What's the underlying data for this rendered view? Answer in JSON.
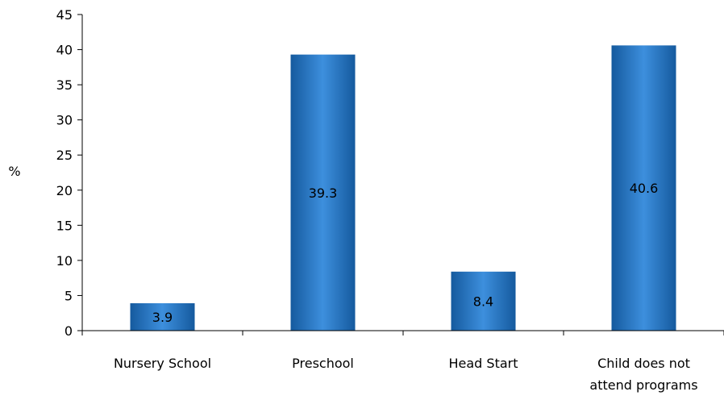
{
  "chart_data": {
    "type": "bar",
    "categories": [
      "Nursery School",
      "Preschool",
      "Head Start",
      "Child does not attend programs"
    ],
    "category_label_lines": [
      [
        "Nursery School"
      ],
      [
        "Preschool"
      ],
      [
        "Head Start"
      ],
      [
        "Child does not",
        "attend programs"
      ]
    ],
    "values": [
      3.9,
      39.3,
      8.4,
      40.6
    ],
    "data_labels": [
      "3.9",
      "39.3",
      "8.4",
      "40.6"
    ],
    "title": "",
    "xlabel": "",
    "ylabel": "%",
    "ylim": [
      0,
      45
    ],
    "yticks": [
      0,
      5,
      10,
      15,
      20,
      25,
      30,
      35,
      40,
      45
    ],
    "grid": false,
    "legend": "none",
    "bar_color": "#1F6FBF",
    "bar_color_light": "#3D8FDD",
    "bar_color_dark": "#155A9E"
  }
}
